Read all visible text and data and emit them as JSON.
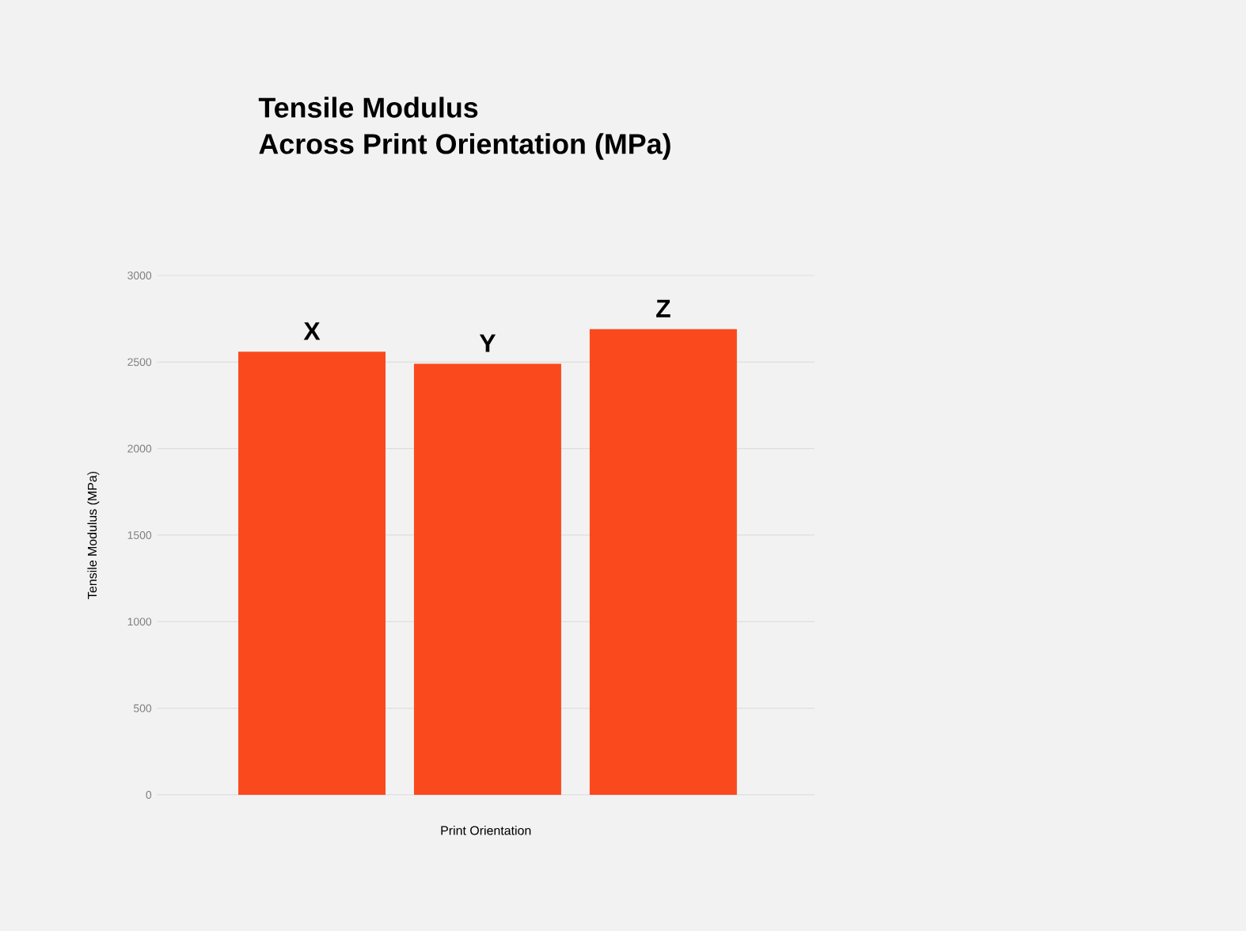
{
  "chart_data": {
    "type": "bar",
    "title": "Tensile Modulus\nAcross Print Orientation (MPa)",
    "xlabel": "Print Orientation",
    "ylabel": "Tensile Modulus (MPa)",
    "categories": [
      "X",
      "Y",
      "Z"
    ],
    "values": [
      2560,
      2490,
      2690
    ],
    "color": "#fa4a1d",
    "ylim": [
      0,
      3000
    ],
    "yticks": [
      0,
      500,
      1000,
      1500,
      2000,
      2500,
      3000
    ],
    "grid": "y"
  }
}
